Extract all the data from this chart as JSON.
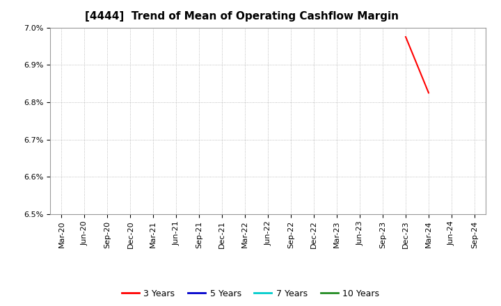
{
  "title": "[4444]  Trend of Mean of Operating Cashflow Margin",
  "ylim": [
    0.065,
    0.07
  ],
  "yticks": [
    0.065,
    0.066,
    0.067,
    0.068,
    0.069,
    0.07
  ],
  "ytick_labels": [
    "6.5%",
    "6.6%",
    "6.7%",
    "6.8%",
    "6.9%",
    "7.0%"
  ],
  "x_tick_labels": [
    "Mar-20",
    "Jun-20",
    "Sep-20",
    "Dec-20",
    "Mar-21",
    "Jun-21",
    "Sep-21",
    "Dec-21",
    "Mar-22",
    "Jun-22",
    "Sep-22",
    "Dec-22",
    "Mar-23",
    "Jun-23",
    "Sep-23",
    "Dec-23",
    "Mar-24",
    "Jun-24",
    "Sep-24"
  ],
  "series": {
    "3 Years": {
      "color": "#ff0000",
      "x": [
        "Dec-23",
        "Mar-24"
      ],
      "y": [
        0.06975,
        0.06825
      ]
    },
    "5 Years": {
      "color": "#0000cc",
      "x": [],
      "y": []
    },
    "7 Years": {
      "color": "#00cccc",
      "x": [],
      "y": []
    },
    "10 Years": {
      "color": "#228B22",
      "x": [],
      "y": []
    }
  },
  "legend_labels": [
    "3 Years",
    "5 Years",
    "7 Years",
    "10 Years"
  ],
  "legend_colors": [
    "#ff0000",
    "#0000cc",
    "#00cccc",
    "#228B22"
  ],
  "background_color": "#ffffff",
  "grid_color": "#aaaaaa",
  "title_fontsize": 11,
  "tick_fontsize": 8,
  "legend_fontsize": 9
}
